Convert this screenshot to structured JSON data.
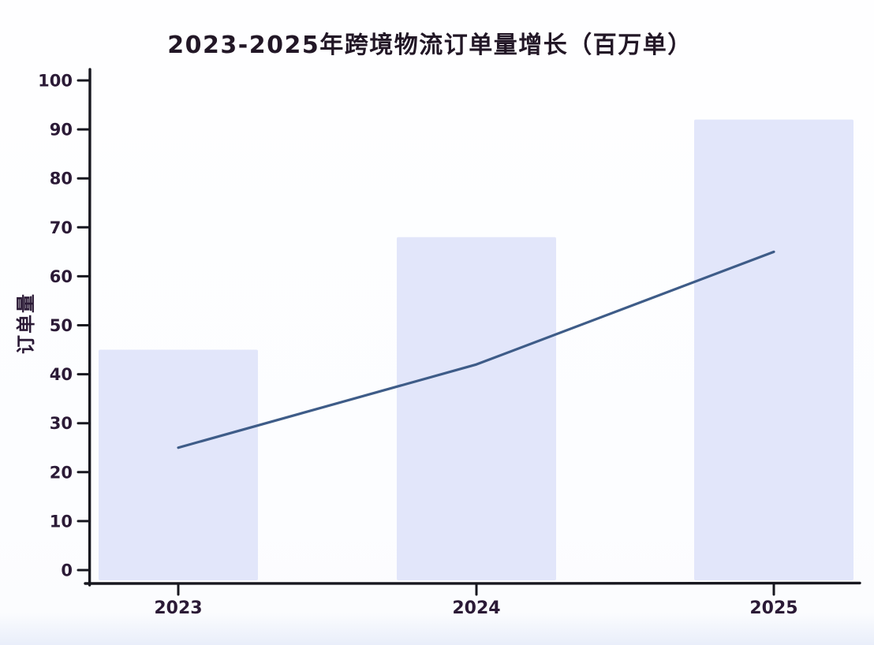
{
  "title": "2023-2025年跨境物流订单量增长（百万单）",
  "chart_data": {
    "type": "bar",
    "categories": [
      "2023",
      "2024",
      "2025"
    ],
    "series": [
      {
        "type": "bar",
        "values": [
          45,
          68,
          92
        ],
        "color": "#e2e6fa"
      },
      {
        "type": "line",
        "values": [
          25,
          42,
          65
        ],
        "color": "#3e5c88"
      }
    ],
    "title": "2023-2025年跨境物流订单量增长（百万单）",
    "xlabel": "",
    "ylabel": "订单量",
    "y_ticks": [
      0,
      10,
      20,
      30,
      40,
      50,
      60,
      70,
      80,
      90,
      100
    ],
    "ylim": [
      0,
      100
    ],
    "grid": false,
    "legend": "none",
    "axis_color": "#17171f",
    "tick_label_color": "#2b1a36"
  }
}
